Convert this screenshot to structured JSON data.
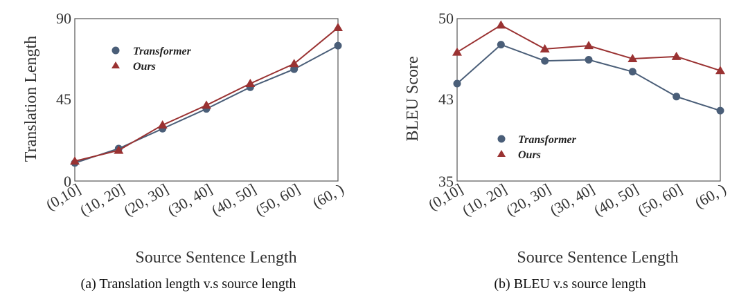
{
  "colors": {
    "transformer": "#4a5e78",
    "ours": "#9a3232",
    "axis": "#555555"
  },
  "chart_data": [
    {
      "type": "line",
      "categories": [
        "(0,10]",
        "(10, 20]",
        "(20, 30]",
        "(30, 40]",
        "(40, 50]",
        "(50, 60]",
        "(60, )"
      ],
      "series": [
        {
          "name": "Transformer",
          "marker": "circle",
          "values": [
            10,
            18,
            29,
            40,
            52,
            62,
            75
          ]
        },
        {
          "name": "Ours",
          "marker": "triangle",
          "values": [
            11,
            17,
            31,
            42,
            54,
            65,
            85
          ]
        }
      ],
      "xlabel": "Source Sentence Length",
      "ylabel": "Translation Length",
      "ylim": [
        0,
        90
      ],
      "yticks": [
        "0",
        "45",
        "90"
      ],
      "legend": "top-left",
      "grid": false,
      "caption": "(a) Translation length v.s source length"
    },
    {
      "type": "line",
      "categories": [
        "(0,10]",
        "(10, 20]",
        "(20, 30]",
        "(30, 40]",
        "(40, 50]",
        "(50, 60]",
        "(60, )"
      ],
      "series": [
        {
          "name": "Transformer",
          "marker": "circle",
          "values": [
            44.0,
            47.6,
            46.1,
            46.2,
            45.1,
            42.8,
            41.5
          ]
        },
        {
          "name": "Ours",
          "marker": "triangle",
          "values": [
            46.9,
            49.4,
            47.2,
            47.5,
            46.3,
            46.5,
            45.2
          ]
        }
      ],
      "xlabel": "Source Sentence Length",
      "ylabel": "BLEU Score",
      "ylim": [
        35,
        50
      ],
      "yticks": [
        "35",
        "43",
        "50"
      ],
      "legend": "bottom-left",
      "grid": false,
      "caption": "(b) BLEU v.s source length"
    }
  ]
}
